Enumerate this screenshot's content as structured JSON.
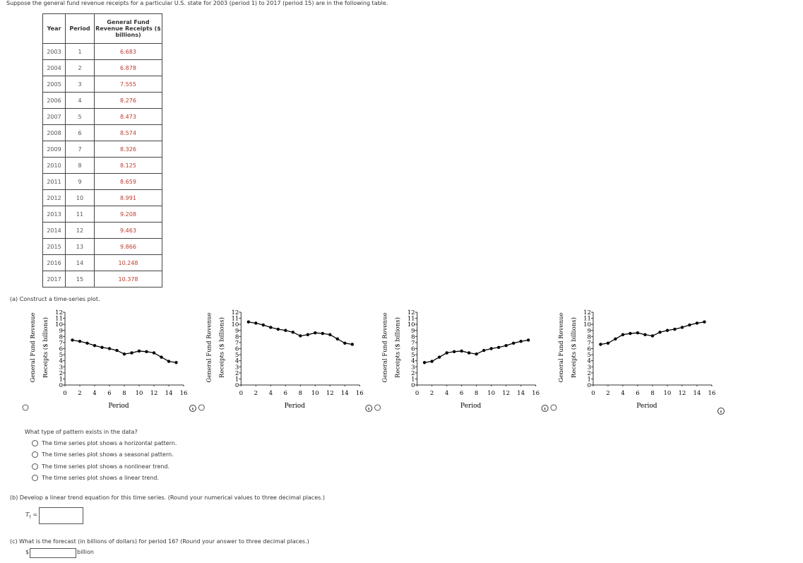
{
  "question": "Suppose the general fund revenue receipts for a particular U.S. state for 2003 (period 1) to 2017 (period 15) are in the following table.",
  "table": {
    "headers": [
      "Year",
      "Period",
      "General Fund Revenue Receipts ($ billions)"
    ],
    "rows": [
      [
        "2003",
        "1",
        "6.683"
      ],
      [
        "2004",
        "2",
        "6.878"
      ],
      [
        "2005",
        "3",
        "7.555"
      ],
      [
        "2006",
        "4",
        "8.276"
      ],
      [
        "2007",
        "5",
        "8.473"
      ],
      [
        "2008",
        "6",
        "8.574"
      ],
      [
        "2009",
        "7",
        "8.326"
      ],
      [
        "2010",
        "8",
        "8.125"
      ],
      [
        "2011",
        "9",
        "8.659"
      ],
      [
        "2012",
        "10",
        "8.991"
      ],
      [
        "2013",
        "11",
        "9.208"
      ],
      [
        "2014",
        "12",
        "9.463"
      ],
      [
        "2015",
        "13",
        "9.866"
      ],
      [
        "2016",
        "14",
        "10.248"
      ],
      [
        "2017",
        "15",
        "10.378"
      ]
    ]
  },
  "part_a": "(a)  Construct a time-series plot.",
  "chart_data": [
    {
      "type": "line",
      "x_label": "Period",
      "y_label": [
        "General Fund Revenue",
        "Receipts ($ billions)"
      ],
      "x": [
        1,
        2,
        3,
        4,
        5,
        6,
        7,
        8,
        9,
        10,
        11,
        12,
        13,
        14,
        15
      ],
      "series": [
        {
          "color": "#000000",
          "values": [
            7.4,
            7.2,
            6.9,
            6.5,
            6.2,
            6.0,
            5.7,
            5.1,
            5.3,
            5.6,
            5.5,
            5.3,
            4.6,
            3.9,
            3.7
          ]
        }
      ],
      "xlim": [
        0,
        16
      ],
      "ylim": [
        0,
        12
      ],
      "xticks": [
        0,
        2,
        4,
        6,
        8,
        10,
        12,
        14,
        16
      ],
      "yticks": [
        0,
        1,
        2,
        3,
        4,
        5,
        6,
        7,
        8,
        9,
        10,
        11,
        12
      ]
    },
    {
      "type": "line",
      "x_label": "Period",
      "y_label": [
        "General Fund Revenue",
        "Receipts ($ billions)"
      ],
      "x": [
        1,
        2,
        3,
        4,
        5,
        6,
        7,
        8,
        9,
        10,
        11,
        12,
        13,
        14,
        15
      ],
      "series": [
        {
          "color": "#000000",
          "values": [
            10.4,
            10.2,
            9.9,
            9.5,
            9.2,
            9.0,
            8.7,
            8.1,
            8.3,
            8.6,
            8.5,
            8.3,
            7.6,
            6.9,
            6.7
          ]
        }
      ],
      "xlim": [
        0,
        16
      ],
      "ylim": [
        0,
        12
      ],
      "xticks": [
        0,
        2,
        4,
        6,
        8,
        10,
        12,
        14,
        16
      ],
      "yticks": [
        0,
        1,
        2,
        3,
        4,
        5,
        6,
        7,
        8,
        9,
        10,
        11,
        12
      ]
    },
    {
      "type": "line",
      "x_label": "Period",
      "y_label": [
        "General Fund Revenue",
        "Receipts ($ billions)"
      ],
      "x": [
        1,
        2,
        3,
        4,
        5,
        6,
        7,
        8,
        9,
        10,
        11,
        12,
        13,
        14,
        15
      ],
      "series": [
        {
          "color": "#000000",
          "values": [
            3.7,
            3.9,
            4.6,
            5.3,
            5.5,
            5.6,
            5.3,
            5.1,
            5.7,
            6.0,
            6.2,
            6.5,
            6.9,
            7.2,
            7.4
          ]
        }
      ],
      "xlim": [
        0,
        16
      ],
      "ylim": [
        0,
        12
      ],
      "xticks": [
        0,
        2,
        4,
        6,
        8,
        10,
        12,
        14,
        16
      ],
      "yticks": [
        0,
        1,
        2,
        3,
        4,
        5,
        6,
        7,
        8,
        9,
        10,
        11,
        12
      ]
    },
    {
      "type": "line",
      "x_label": "Period",
      "y_label": [
        "General Fund Revenue",
        "Receipts ($ billions)"
      ],
      "x": [
        1,
        2,
        3,
        4,
        5,
        6,
        7,
        8,
        9,
        10,
        11,
        12,
        13,
        14,
        15
      ],
      "series": [
        {
          "color": "#000000",
          "values": [
            6.7,
            6.9,
            7.6,
            8.3,
            8.5,
            8.6,
            8.3,
            8.1,
            8.7,
            9.0,
            9.2,
            9.5,
            9.9,
            10.2,
            10.4
          ]
        }
      ],
      "xlim": [
        0,
        16
      ],
      "ylim": [
        0,
        12
      ],
      "xticks": [
        0,
        2,
        4,
        6,
        8,
        10,
        12,
        14,
        16
      ],
      "yticks": [
        0,
        1,
        2,
        3,
        4,
        5,
        6,
        7,
        8,
        9,
        10,
        11,
        12
      ]
    }
  ],
  "pattern_question": {
    "prompt": "What type of pattern exists in the data?",
    "options": [
      "The time series plot shows a horizontal pattern.",
      "The time series plot shows a seasonal pattern.",
      "The time series plot shows a nonlinear trend.",
      "The time series plot shows a linear trend."
    ]
  },
  "part_b": {
    "prompt": "(b)  Develop a linear trend equation for this time series. (Round your numerical values to three decimal places.)",
    "label": "T",
    "subscript": "t",
    "suffix": "="
  },
  "part_c": {
    "prompt": "(c)  What is the forecast (in billions of dollars) for period 16? (Round your answer to three decimal places.)",
    "prefix": "$",
    "unit": "billion"
  }
}
